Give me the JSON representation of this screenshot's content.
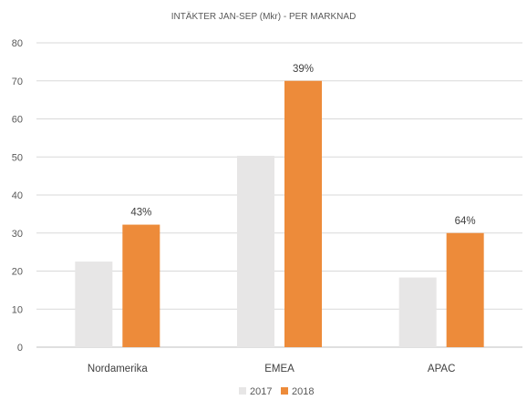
{
  "chart_data": {
    "type": "bar",
    "title": "INTÄKTER  JAN-SEP (Mkr) - PER MARKNAD",
    "categories": [
      "Nordamerika",
      "EMEA",
      "APAC"
    ],
    "series": [
      {
        "name": "2017",
        "values": [
          22.5,
          50.3,
          18.3
        ],
        "color": "#e7e6e6"
      },
      {
        "name": "2018",
        "values": [
          32.2,
          70.0,
          30.0
        ],
        "color": "#ed8b3a"
      }
    ],
    "data_labels": [
      "43%",
      "39%",
      "64%"
    ],
    "ylim": [
      0,
      80
    ],
    "yticks": [
      0,
      10,
      20,
      30,
      40,
      50,
      60,
      70,
      80
    ],
    "grid": true,
    "legend": "bottom"
  }
}
